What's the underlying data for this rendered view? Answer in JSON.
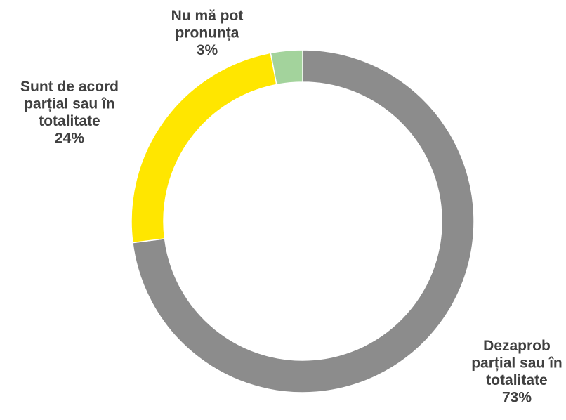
{
  "chart_data": {
    "type": "pie",
    "variant": "donut",
    "title": "",
    "slices": [
      {
        "label_lines": [
          "Dezaprob",
          "parțial sau în",
          "totalitate"
        ],
        "percent_label": "73%",
        "value": 73,
        "color": "#8c8c8c"
      },
      {
        "label_lines": [
          "Sunt de acord",
          "parțial sau în",
          "totalitate"
        ],
        "percent_label": "24%",
        "value": 24,
        "color": "#ffe600"
      },
      {
        "label_lines": [
          "Nu mă pot",
          "pronunța"
        ],
        "percent_label": "3%",
        "value": 3,
        "color": "#a3d39c"
      }
    ],
    "start_angle_deg": 0,
    "direction": "clockwise",
    "legend": "none"
  }
}
